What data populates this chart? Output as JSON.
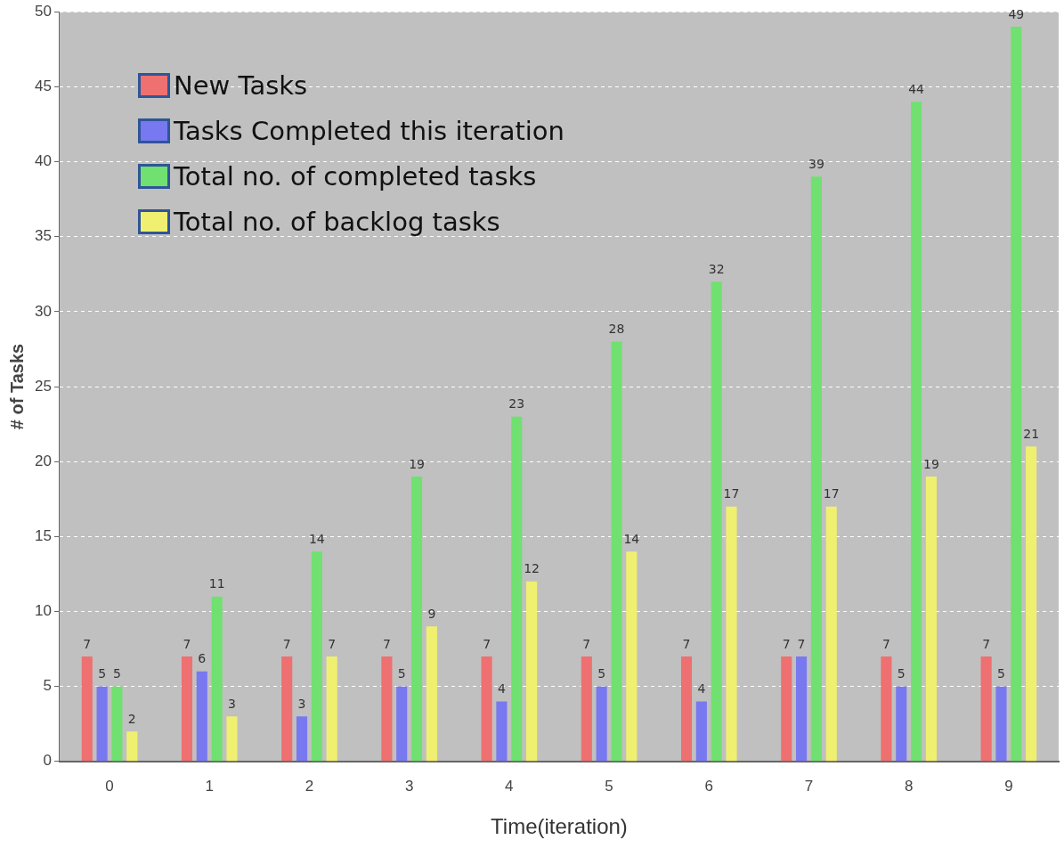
{
  "chart_data": {
    "type": "bar",
    "xlabel": "Time(iteration)",
    "ylabel": "# of Tasks",
    "categories": [
      "0",
      "1",
      "2",
      "3",
      "4",
      "5",
      "6",
      "7",
      "8",
      "9"
    ],
    "series": [
      {
        "name": "New Tasks",
        "color": "#ee7070",
        "values": [
          7,
          7,
          7,
          7,
          7,
          7,
          7,
          7,
          7,
          7
        ]
      },
      {
        "name": "Tasks Completed this iteration",
        "color": "#7878f0",
        "values": [
          5,
          6,
          3,
          5,
          4,
          5,
          4,
          7,
          5,
          5
        ]
      },
      {
        "name": "Total no. of completed tasks",
        "color": "#70e070",
        "values": [
          5,
          11,
          14,
          19,
          23,
          28,
          32,
          39,
          44,
          49
        ]
      },
      {
        "name": "Total no. of backlog tasks",
        "color": "#f0f070",
        "values": [
          2,
          3,
          7,
          9,
          12,
          14,
          17,
          17,
          19,
          21
        ]
      }
    ],
    "ylim": [
      0,
      50
    ],
    "yticks": [
      0,
      5,
      10,
      15,
      20,
      25,
      30,
      35,
      40,
      45,
      50
    ],
    "grid": "y",
    "legend": "top left",
    "data_labels": true
  }
}
